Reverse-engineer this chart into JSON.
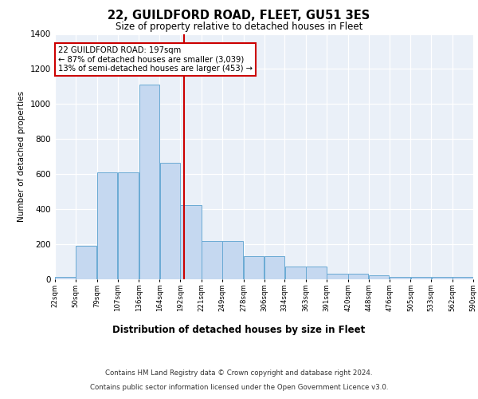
{
  "title": "22, GUILDFORD ROAD, FLEET, GU51 3ES",
  "subtitle": "Size of property relative to detached houses in Fleet",
  "xlabel": "Distribution of detached houses by size in Fleet",
  "ylabel": "Number of detached properties",
  "bar_color": "#c5d8f0",
  "bar_edge_color": "#6aaad4",
  "bg_color": "#eaf0f8",
  "grid_color": "#ffffff",
  "annotation_text": "22 GUILDFORD ROAD: 197sqm\n← 87% of detached houses are smaller (3,039)\n13% of semi-detached houses are larger (453) →",
  "vline_x": 197,
  "vline_color": "#cc0000",
  "annotation_box_color": "#ffffff",
  "annotation_box_edge": "#cc0000",
  "bin_edges": [
    22,
    50,
    79,
    107,
    136,
    164,
    192,
    221,
    249,
    278,
    306,
    334,
    363,
    391,
    420,
    448,
    476,
    505,
    533,
    562,
    590
  ],
  "bar_heights": [
    15,
    190,
    610,
    610,
    1110,
    665,
    425,
    220,
    220,
    130,
    130,
    75,
    75,
    30,
    30,
    25,
    15,
    15,
    12,
    12
  ],
  "tick_labels": [
    "22sqm",
    "50sqm",
    "79sqm",
    "107sqm",
    "136sqm",
    "164sqm",
    "192sqm",
    "221sqm",
    "249sqm",
    "278sqm",
    "306sqm",
    "334sqm",
    "363sqm",
    "391sqm",
    "420sqm",
    "448sqm",
    "476sqm",
    "505sqm",
    "533sqm",
    "562sqm",
    "590sqm"
  ],
  "ylim": [
    0,
    1400
  ],
  "yticks": [
    0,
    200,
    400,
    600,
    800,
    1000,
    1200,
    1400
  ],
  "footer_line1": "Contains HM Land Registry data © Crown copyright and database right 2024.",
  "footer_line2": "Contains public sector information licensed under the Open Government Licence v3.0."
}
